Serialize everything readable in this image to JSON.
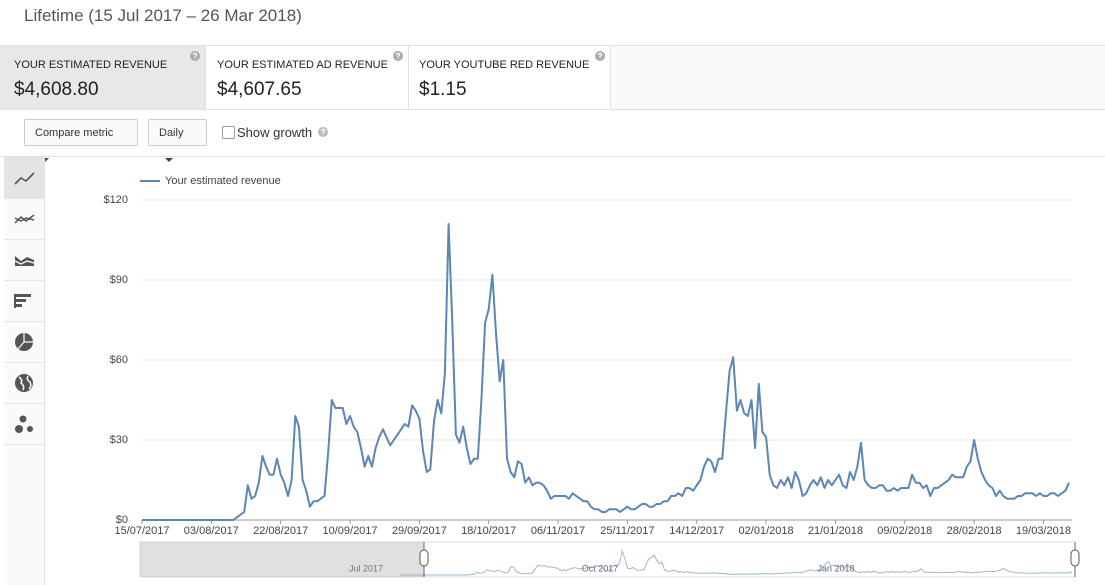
{
  "header": {
    "title": "Lifetime (15 Jul 2017 – 26 Mar 2018)"
  },
  "metrics": [
    {
      "label": "YOUR ESTIMATED REVENUE",
      "value": "$4,608.80"
    },
    {
      "label": "YOUR ESTIMATED AD REVENUE",
      "value": "$4,607.65"
    },
    {
      "label": "YOUR YOUTUBE RED REVENUE",
      "value": "$1.15"
    }
  ],
  "toolbar": {
    "compare": "Compare metric",
    "interval": "Daily",
    "growth": "Show growth"
  },
  "navigator": {
    "labels": [
      "Jul 2017",
      "Oct 2017",
      "Jan 2018"
    ]
  },
  "chart_data": {
    "type": "line",
    "grid": true,
    "series": [
      {
        "name": "Your estimated revenue",
        "color": "#5b86b5",
        "values": [
          0,
          0,
          0,
          0,
          0,
          0,
          0,
          0,
          0,
          0,
          0,
          0,
          0,
          0,
          0,
          0,
          0,
          0,
          0,
          0,
          0,
          0,
          0,
          0,
          0,
          0,
          1,
          2,
          3,
          13,
          8,
          9,
          14,
          24,
          20,
          17,
          17,
          23,
          17,
          14,
          9,
          15,
          39,
          35,
          15,
          11,
          5,
          7,
          7,
          8,
          9,
          25,
          45,
          42,
          42,
          42,
          36,
          39,
          35,
          33,
          27,
          20,
          24,
          20,
          27,
          31,
          34,
          31,
          28,
          30,
          32,
          34,
          36,
          35,
          43,
          41,
          38,
          26,
          18,
          19,
          37,
          45,
          40,
          55,
          111,
          75,
          32,
          29,
          35,
          27,
          21,
          23,
          23,
          45,
          74,
          79,
          92,
          70,
          52,
          60,
          23,
          18,
          16,
          22,
          21,
          14,
          16,
          13,
          14,
          14,
          13,
          11,
          8,
          9,
          9,
          9,
          9,
          8,
          10,
          9,
          8,
          7,
          7,
          5,
          4,
          4,
          3,
          3,
          4,
          4,
          4,
          3,
          4,
          5,
          4,
          4,
          5,
          6,
          6,
          5,
          5,
          6,
          6,
          7,
          7,
          9,
          9,
          10,
          9,
          12,
          12,
          11,
          13,
          15,
          20,
          23,
          22,
          18,
          23,
          23,
          40,
          56,
          61,
          41,
          45,
          40,
          39,
          45,
          27,
          51,
          33,
          31,
          17,
          13,
          12,
          15,
          13,
          16,
          12,
          18,
          15,
          9,
          10,
          13,
          15,
          13,
          16,
          12,
          15,
          13,
          15,
          17,
          13,
          12,
          18,
          15,
          20,
          29,
          15,
          13,
          12,
          12,
          13,
          13,
          11,
          11,
          12,
          11,
          12,
          12,
          12,
          17,
          14,
          14,
          12,
          13,
          9,
          12,
          12,
          13,
          14,
          15,
          17,
          16,
          16,
          16,
          20,
          22,
          30,
          23,
          18,
          15,
          13,
          12,
          9,
          11,
          9,
          8,
          8,
          8,
          9,
          9,
          10,
          10,
          10,
          9,
          10,
          9,
          9,
          10,
          10,
          9,
          10,
          11,
          14
        ]
      }
    ],
    "x": [
      "15/07/2017",
      "16/07/2017",
      "17/07/2017",
      "18/07/2017",
      "19/07/2017",
      "20/07/2017",
      "21/07/2017",
      "22/07/2017",
      "23/07/2017",
      "24/07/2017",
      "25/07/2017",
      "26/07/2017",
      "27/07/2017",
      "28/07/2017",
      "29/07/2017",
      "30/07/2017",
      "31/07/2017",
      "01/08/2017",
      "02/08/2017",
      "03/08/2017",
      "04/08/2017",
      "05/08/2017",
      "06/08/2017",
      "07/08/2017",
      "08/08/2017",
      "09/08/2017",
      "10/08/2017",
      "11/08/2017",
      "12/08/2017",
      "13/08/2017",
      "14/08/2017",
      "15/08/2017",
      "16/08/2017",
      "17/08/2017",
      "18/08/2017",
      "19/08/2017",
      "20/08/2017",
      "21/08/2017",
      "22/08/2017",
      "23/08/2017",
      "24/08/2017",
      "25/08/2017",
      "26/08/2017",
      "27/08/2017",
      "28/08/2017",
      "29/08/2017",
      "30/08/2017",
      "31/08/2017",
      "01/09/2017",
      "02/09/2017",
      "03/09/2017",
      "04/09/2017",
      "05/09/2017",
      "06/09/2017",
      "07/09/2017",
      "08/09/2017",
      "09/09/2017",
      "10/09/2017",
      "11/09/2017",
      "12/09/2017",
      "13/09/2017",
      "14/09/2017",
      "15/09/2017",
      "16/09/2017",
      "17/09/2017",
      "18/09/2017",
      "19/09/2017",
      "20/09/2017",
      "21/09/2017",
      "22/09/2017",
      "23/09/2017",
      "24/09/2017",
      "25/09/2017",
      "26/09/2017",
      "27/09/2017",
      "28/09/2017",
      "29/09/2017",
      "30/09/2017",
      "01/10/2017",
      "02/10/2017",
      "03/10/2017",
      "04/10/2017",
      "05/10/2017",
      "06/10/2017",
      "07/10/2017",
      "08/10/2017",
      "09/10/2017",
      "10/10/2017",
      "11/10/2017",
      "12/10/2017",
      "13/10/2017",
      "14/10/2017",
      "15/10/2017",
      "16/10/2017",
      "17/10/2017",
      "18/10/2017",
      "19/10/2017",
      "20/10/2017",
      "21/10/2017",
      "22/10/2017",
      "23/10/2017",
      "24/10/2017",
      "25/10/2017",
      "26/10/2017",
      "27/10/2017",
      "28/10/2017",
      "29/10/2017",
      "30/10/2017",
      "31/10/2017",
      "01/11/2017",
      "02/11/2017",
      "03/11/2017",
      "04/11/2017",
      "05/11/2017",
      "06/11/2017",
      "07/11/2017",
      "08/11/2017",
      "09/11/2017",
      "10/11/2017",
      "11/11/2017",
      "12/11/2017",
      "13/11/2017",
      "14/11/2017",
      "15/11/2017",
      "16/11/2017",
      "17/11/2017",
      "18/11/2017",
      "19/11/2017",
      "20/11/2017",
      "21/11/2017",
      "22/11/2017",
      "23/11/2017",
      "24/11/2017",
      "25/11/2017",
      "26/11/2017",
      "27/11/2017",
      "28/11/2017",
      "29/11/2017",
      "30/11/2017",
      "01/12/2017",
      "02/12/2017",
      "03/12/2017",
      "04/12/2017",
      "05/12/2017",
      "06/12/2017",
      "07/12/2017",
      "08/12/2017",
      "09/12/2017",
      "10/12/2017",
      "11/12/2017",
      "12/12/2017",
      "13/12/2017",
      "14/12/2017",
      "15/12/2017",
      "16/12/2017",
      "17/12/2017",
      "18/12/2017",
      "19/12/2017",
      "20/12/2017",
      "21/12/2017",
      "22/12/2017",
      "23/12/2017",
      "24/12/2017",
      "25/12/2017",
      "26/12/2017",
      "27/12/2017",
      "28/12/2017",
      "29/12/2017",
      "30/12/2017",
      "31/12/2017",
      "01/01/2018",
      "02/01/2018",
      "03/01/2018",
      "04/01/2018",
      "05/01/2018",
      "06/01/2018",
      "07/01/2018",
      "08/01/2018",
      "09/01/2018",
      "10/01/2018",
      "11/01/2018",
      "12/01/2018",
      "13/01/2018",
      "14/01/2018",
      "15/01/2018",
      "16/01/2018",
      "17/01/2018",
      "18/01/2018",
      "19/01/2018",
      "20/01/2018",
      "21/01/2018",
      "22/01/2018",
      "23/01/2018",
      "24/01/2018",
      "25/01/2018",
      "26/01/2018",
      "27/01/2018",
      "28/01/2018",
      "29/01/2018",
      "30/01/2018",
      "31/01/2018",
      "01/02/2018",
      "02/02/2018",
      "03/02/2018",
      "04/02/2018",
      "05/02/2018",
      "06/02/2018",
      "07/02/2018",
      "08/02/2018",
      "09/02/2018",
      "10/02/2018",
      "11/02/2018",
      "12/02/2018",
      "13/02/2018",
      "14/02/2018",
      "15/02/2018",
      "16/02/2018",
      "17/02/2018",
      "18/02/2018",
      "19/02/2018",
      "20/02/2018",
      "21/02/2018",
      "22/02/2018",
      "23/02/2018",
      "24/02/2018",
      "25/02/2018",
      "26/02/2018",
      "27/02/2018",
      "28/02/2018",
      "01/03/2018",
      "02/03/2018",
      "03/03/2018",
      "04/03/2018",
      "05/03/2018",
      "06/03/2018",
      "07/03/2018",
      "08/03/2018",
      "09/03/2018",
      "10/03/2018",
      "11/03/2018",
      "12/03/2018",
      "13/03/2018",
      "14/03/2018",
      "15/03/2018",
      "16/03/2018",
      "17/03/2018",
      "18/03/2018",
      "19/03/2018",
      "20/03/2018",
      "21/03/2018",
      "22/03/2018",
      "23/03/2018",
      "24/03/2018",
      "25/03/2018",
      "26/03/2018"
    ],
    "xticks": [
      "15/07/2017",
      "03/08/2017",
      "22/08/2017",
      "10/09/2017",
      "29/09/2017",
      "18/10/2017",
      "06/11/2017",
      "25/11/2017",
      "14/12/2017",
      "02/01/2018",
      "21/01/2018",
      "09/02/2018",
      "28/02/2018",
      "19/03/2018"
    ],
    "ylim": [
      0,
      120
    ],
    "yticks": [
      {
        "value": 0,
        "label": "$0"
      },
      {
        "value": 30,
        "label": "$30"
      },
      {
        "value": 60,
        "label": "$60"
      },
      {
        "value": 90,
        "label": "$90"
      },
      {
        "value": 120,
        "label": "$120"
      }
    ]
  }
}
